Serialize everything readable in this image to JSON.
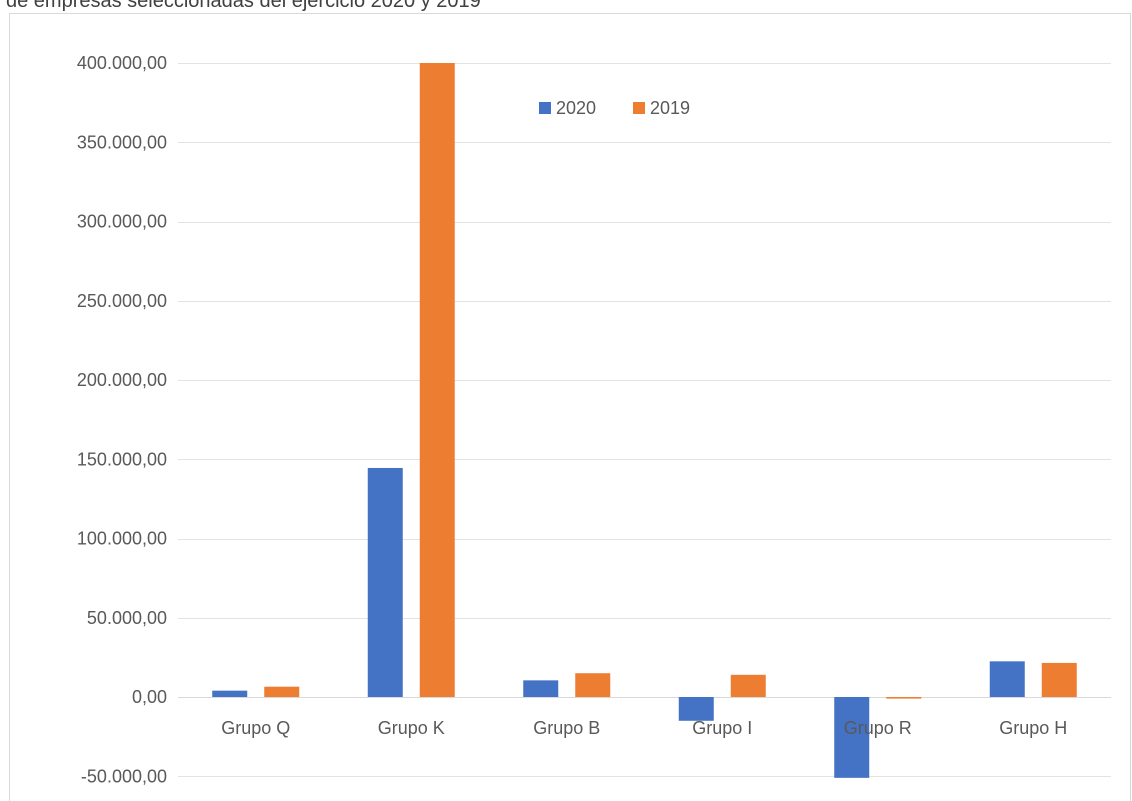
{
  "header": {
    "partial_title": "de empresas seleccionadas del ejercicio 2020 y 2019"
  },
  "chart_data": {
    "type": "bar",
    "categories": [
      "Grupo Q",
      "Grupo K",
      "Grupo B",
      "Grupo I",
      "Grupo R",
      "Grupo H"
    ],
    "series": [
      {
        "name": "2020",
        "color": "#4472C4",
        "values": [
          4000,
          144500,
          10500,
          -15000,
          -51000,
          22500
        ]
      },
      {
        "name": "2019",
        "color": "#ED7D31",
        "values": [
          6500,
          400000,
          15000,
          14000,
          -1000,
          21500
        ]
      }
    ],
    "y_ticks": [
      400000,
      350000,
      300000,
      250000,
      200000,
      150000,
      100000,
      50000,
      0,
      -50000
    ],
    "y_tick_labels": [
      "400.000,00",
      "350.000,00",
      "300.000,00",
      "250.000,00",
      "200.000,00",
      "150.000,00",
      "100.000,00",
      "50.000,00",
      "0,00",
      "-50.000,00"
    ],
    "ylim": [
      -50000,
      400000
    ],
    "grid": true,
    "legend_position": "top-center",
    "title": "",
    "xlabel": "",
    "ylabel": ""
  }
}
